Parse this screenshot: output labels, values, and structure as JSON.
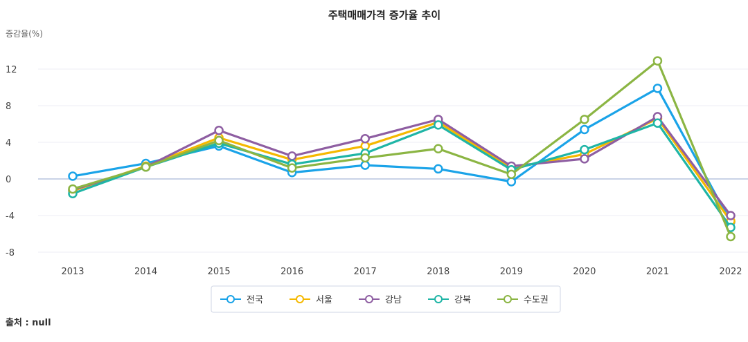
{
  "chart_data": {
    "type": "line",
    "title": "주택매매가격 증가율 추이",
    "ylabel": "증감율(%)",
    "xlabel": "",
    "categories": [
      "2013",
      "2014",
      "2015",
      "2016",
      "2017",
      "2018",
      "2019",
      "2020",
      "2021",
      "2022"
    ],
    "yticks": [
      12,
      8,
      4,
      0,
      -4,
      -8
    ],
    "ylim": [
      -8,
      13
    ],
    "grid": true,
    "legend_position": "bottom",
    "series": [
      {
        "name": "전국",
        "color": "#1aa3e8",
        "values": [
          0.3,
          1.7,
          3.6,
          0.7,
          1.5,
          1.1,
          -0.3,
          5.4,
          9.9,
          -4.7
        ]
      },
      {
        "name": "서울",
        "color": "#f5b800",
        "values": [
          -1.3,
          1.4,
          4.5,
          2.1,
          3.6,
          6.2,
          1.2,
          2.7,
          6.6,
          -4.6
        ]
      },
      {
        "name": "강남",
        "color": "#8e5ea2",
        "values": [
          -1.2,
          1.3,
          5.3,
          2.5,
          4.4,
          6.5,
          1.4,
          2.2,
          6.8,
          -4.0
        ]
      },
      {
        "name": "강북",
        "color": "#1fb5a6",
        "values": [
          -1.6,
          1.3,
          3.9,
          1.6,
          2.8,
          5.9,
          1.0,
          3.2,
          6.1,
          -5.3
        ]
      },
      {
        "name": "수도권",
        "color": "#8bb543",
        "values": [
          -1.1,
          1.3,
          4.2,
          1.2,
          2.3,
          3.3,
          0.5,
          6.5,
          12.9,
          -6.3
        ]
      }
    ]
  },
  "source_label": "출처 : null"
}
